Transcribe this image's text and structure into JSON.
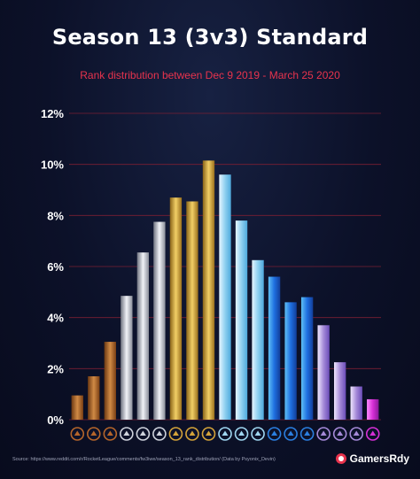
{
  "header": {
    "title": "Season 13 (3v3) Standard",
    "subtitle": "Rank distribution between Dec 9 2019 - March 25 2020"
  },
  "footer": {
    "source": "Source: https://www.reddit.com/r/RocketLeague/comments/fw3iwe/season_13_rank_distribution/ (Data by Psyonix_Devin)",
    "brand": "GamersRdy"
  },
  "colors": {
    "background": "#0c1129",
    "title": "#ffffff",
    "subtitle": "#e8334d",
    "gridline": "#7a1f33",
    "bronze": "#b5652a",
    "silver": "#cfd3dd",
    "gold": "#d4a33a",
    "platinum": "#9fd6f0",
    "diamond": "#2b7fe0",
    "champion": "#a58ad8",
    "grand_champion": "#d62fd6"
  },
  "chart_data": {
    "type": "bar",
    "title": "Season 13 (3v3) Standard",
    "subtitle": "Rank distribution between Dec 9 2019 - March 25 2020",
    "xlabel": "",
    "ylabel": "",
    "ylim": [
      0,
      12
    ],
    "yticks": [
      0,
      2,
      4,
      6,
      8,
      10,
      12
    ],
    "ytick_labels": [
      "0%",
      "2%",
      "4%",
      "6%",
      "8%",
      "10%",
      "12%"
    ],
    "grid": true,
    "categories": [
      "Bronze I",
      "Bronze II",
      "Bronze III",
      "Silver I",
      "Silver II",
      "Silver III",
      "Gold I",
      "Gold II",
      "Gold III",
      "Platinum I",
      "Platinum II",
      "Platinum III",
      "Diamond I",
      "Diamond II",
      "Diamond III",
      "Champion I",
      "Champion II",
      "Champion III",
      "Grand Champion"
    ],
    "tiers": [
      "bronze",
      "bronze",
      "bronze",
      "silver",
      "silver",
      "silver",
      "gold",
      "gold",
      "gold",
      "platinum",
      "platinum",
      "platinum",
      "diamond",
      "diamond",
      "diamond",
      "champion",
      "champion",
      "champion",
      "grand_champion"
    ],
    "icons": [
      "bronze-rank-icon",
      "bronze-rank-icon",
      "bronze-rank-icon",
      "silver-rank-icon",
      "silver-rank-icon",
      "silver-rank-icon",
      "gold-rank-icon",
      "gold-rank-icon",
      "gold-rank-icon",
      "platinum-rank-icon",
      "platinum-rank-icon",
      "platinum-rank-icon",
      "diamond-rank-icon",
      "diamond-rank-icon",
      "diamond-rank-icon",
      "champion-rank-icon",
      "champion-rank-icon",
      "champion-rank-icon",
      "grand-champion-rank-icon"
    ],
    "values": [
      0.95,
      1.7,
      3.05,
      4.85,
      6.55,
      7.75,
      8.7,
      8.55,
      10.15,
      9.6,
      7.8,
      6.25,
      5.6,
      4.6,
      4.8,
      3.7,
      2.25,
      1.3,
      0.8
    ]
  }
}
